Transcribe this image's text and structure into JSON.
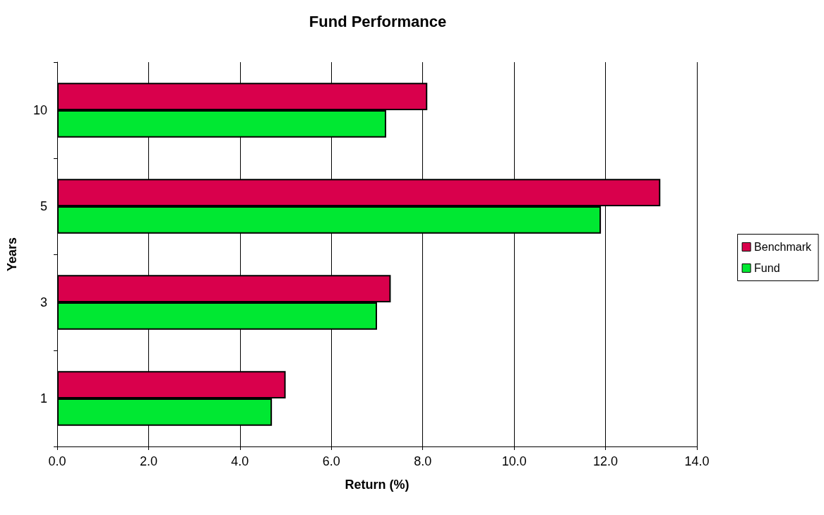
{
  "chart_data": {
    "type": "bar",
    "orientation": "horizontal",
    "title": "Fund Performance",
    "xlabel": "Return (%)",
    "ylabel": "Years",
    "categories": [
      "10",
      "5",
      "3",
      "1"
    ],
    "series": [
      {
        "name": "Benchmark",
        "color": "#d9004c",
        "values": [
          8.1,
          13.2,
          7.3,
          5.0
        ]
      },
      {
        "name": "Fund",
        "color": "#00e832",
        "values": [
          7.2,
          11.9,
          7.0,
          4.7
        ]
      }
    ],
    "xlim": [
      0,
      14
    ],
    "xticks": [
      {
        "value": 0,
        "label": "0.0"
      },
      {
        "value": 2,
        "label": "2.0"
      },
      {
        "value": 4,
        "label": "4.0"
      },
      {
        "value": 6,
        "label": "6.0"
      },
      {
        "value": 8,
        "label": "8.0"
      },
      {
        "value": 10,
        "label": "10.0"
      },
      {
        "value": 12,
        "label": "12.0"
      },
      {
        "value": 14,
        "label": "14.0"
      }
    ],
    "grid": "x",
    "legend": "right"
  }
}
